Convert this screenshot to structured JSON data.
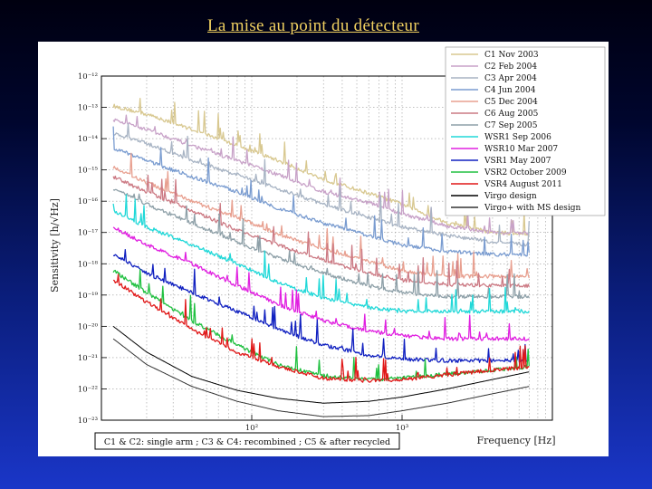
{
  "slide": {
    "title": "La mise au point du détecteur"
  },
  "chart_data": {
    "type": "line",
    "title": "",
    "xlabel": "Frequency [Hz]",
    "ylabel": "Sensitivity [h/√Hz]",
    "x_scale": "log",
    "y_scale": "log",
    "xlim": [
      10,
      10000
    ],
    "ylim": [
      1e-23,
      1e-12
    ],
    "grid": true,
    "legend_position": "top-right",
    "x_tick_labels": [
      "10²",
      "10³"
    ],
    "x_tick_values": [
      100,
      1000
    ],
    "y_tick_labels": [
      "10⁻¹²",
      "10⁻¹³",
      "10⁻¹⁴",
      "10⁻¹⁵",
      "10⁻¹⁶",
      "10⁻¹⁷",
      "10⁻¹⁸",
      "10⁻¹⁹",
      "10⁻²⁰",
      "10⁻²¹",
      "10⁻²²",
      "10⁻²³"
    ],
    "y_tick_exponents": [
      -12,
      -13,
      -14,
      -15,
      -16,
      -17,
      -18,
      -19,
      -20,
      -21,
      -22,
      -23
    ],
    "caption": "C1 & C2: single arm ; C3 & C4: recombined ; C5 & after recycled",
    "series": [
      {
        "name": "C1 Nov 2003",
        "color": "#d8c890",
        "x": [
          12,
          20,
          40,
          80,
          150,
          300,
          600,
          1000,
          2000,
          4000,
          7000
        ],
        "y": [
          1.1e-13,
          6e-14,
          2e-14,
          6e-15,
          2e-15,
          5e-16,
          1.8e-16,
          8e-17,
          2e-17,
          1e-17,
          9e-18
        ]
      },
      {
        "name": "C2 Feb 2004",
        "color": "#c8a2c8",
        "x": [
          12,
          20,
          40,
          80,
          150,
          300,
          600,
          1000,
          2000,
          4000,
          7000
        ],
        "y": [
          4e-14,
          2e-14,
          6e-15,
          2e-15,
          7e-16,
          2e-16,
          9e-17,
          4e-17,
          1.6e-17,
          1e-17,
          9e-18
        ]
      },
      {
        "name": "C3 Apr 2004",
        "color": "#a8b4c4",
        "x": [
          12,
          20,
          40,
          80,
          150,
          300,
          600,
          1000,
          2000,
          4000,
          7000
        ],
        "y": [
          1.5e-14,
          7e-15,
          2e-15,
          7e-16,
          2.5e-16,
          8e-17,
          3e-17,
          1.5e-17,
          8e-18,
          5e-18,
          4e-18
        ]
      },
      {
        "name": "C4 Jun 2004",
        "color": "#7a9cd0",
        "x": [
          12,
          20,
          40,
          80,
          150,
          300,
          600,
          1000,
          2000,
          4000,
          7000
        ],
        "y": [
          5e-15,
          2e-15,
          6e-16,
          2e-16,
          6e-17,
          2e-17,
          8e-18,
          4e-18,
          2.5e-18,
          2e-18,
          2e-18
        ]
      },
      {
        "name": "C5 Dec 2004",
        "color": "#e8a090",
        "x": [
          12,
          20,
          40,
          80,
          150,
          300,
          600,
          1000,
          2000,
          4000,
          7000
        ],
        "y": [
          1.2e-15,
          4e-16,
          1e-16,
          3e-17,
          9e-18,
          3e-18,
          1.2e-18,
          6e-19,
          4e-19,
          4e-19,
          4e-19
        ]
      },
      {
        "name": "C6 Aug 2005",
        "color": "#cc7a84",
        "x": [
          12,
          20,
          40,
          80,
          150,
          300,
          600,
          1000,
          2000,
          4000,
          7000
        ],
        "y": [
          6e-16,
          2e-16,
          5e-17,
          1.2e-17,
          4e-18,
          1.3e-18,
          5e-19,
          3e-19,
          2.2e-19,
          2e-19,
          2e-19
        ]
      },
      {
        "name": "C7 Sep 2005",
        "color": "#8ea0a8",
        "x": [
          12,
          20,
          40,
          80,
          150,
          300,
          600,
          1000,
          2000,
          4000,
          7000
        ],
        "y": [
          2.5e-16,
          8e-17,
          2e-17,
          5e-18,
          1.5e-18,
          5e-19,
          2e-19,
          1.2e-19,
          9e-20,
          9e-20,
          9e-20
        ]
      },
      {
        "name": "WSR1 Sep 2006",
        "color": "#20d8d8",
        "x": [
          12,
          20,
          40,
          80,
          150,
          300,
          600,
          1000,
          2000,
          4000,
          7000
        ],
        "y": [
          5e-17,
          1.5e-17,
          4e-18,
          1e-18,
          2.5e-19,
          8e-20,
          4e-20,
          3e-20,
          3e-20,
          3e-20,
          3e-20
        ]
      },
      {
        "name": "WSR10 Mar 2007",
        "color": "#e020e0",
        "x": [
          12,
          20,
          40,
          80,
          150,
          300,
          600,
          1000,
          2000,
          4000,
          7000
        ],
        "y": [
          1.5e-17,
          4e-18,
          1e-18,
          2e-19,
          5e-20,
          1.5e-20,
          7e-21,
          5e-21,
          4e-21,
          4e-21,
          4e-21
        ]
      },
      {
        "name": "VSR1 May 2007",
        "color": "#1020c0",
        "x": [
          12,
          20,
          40,
          80,
          150,
          300,
          600,
          1000,
          2000,
          4000,
          7000
        ],
        "y": [
          2e-18,
          5e-19,
          1.2e-19,
          3e-20,
          8e-21,
          2.5e-21,
          1.2e-21,
          9e-22,
          8e-22,
          8e-22,
          8e-22
        ]
      },
      {
        "name": "VSR2 October 2009",
        "color": "#20c040",
        "x": [
          12,
          20,
          40,
          80,
          150,
          300,
          600,
          1000,
          2000,
          4000,
          7000
        ],
        "y": [
          6e-19,
          1.2e-19,
          1.5e-20,
          2.5e-21,
          6e-22,
          2.5e-22,
          2e-22,
          2.2e-22,
          3e-22,
          4e-22,
          5e-22
        ]
      },
      {
        "name": "VSR4 August 2011",
        "color": "#e01818",
        "x": [
          12,
          20,
          40,
          80,
          150,
          300,
          600,
          1000,
          2000,
          4000,
          7000
        ],
        "y": [
          3e-19,
          6e-20,
          8e-21,
          1.5e-21,
          5e-22,
          2.2e-22,
          1.8e-22,
          2e-22,
          2.8e-22,
          4e-22,
          5e-22
        ]
      },
      {
        "name": "Virgo design",
        "color": "#000000",
        "x": [
          12,
          20,
          40,
          80,
          150,
          300,
          600,
          1000,
          2000,
          4000,
          7000
        ],
        "y": [
          1e-20,
          1.5e-21,
          2.5e-22,
          9e-23,
          5e-23,
          3.5e-23,
          4e-23,
          5.5e-23,
          1e-22,
          2e-22,
          3.5e-22
        ]
      },
      {
        "name": "Virgo+ with MS design",
        "color": "#333333",
        "x": [
          12,
          20,
          40,
          80,
          150,
          300,
          600,
          1000,
          2000,
          4000,
          7000
        ],
        "y": [
          4e-21,
          6e-22,
          1.2e-22,
          4e-23,
          2e-23,
          1.3e-23,
          1.4e-23,
          2e-23,
          3.5e-23,
          7e-23,
          1.2e-22
        ]
      }
    ]
  }
}
